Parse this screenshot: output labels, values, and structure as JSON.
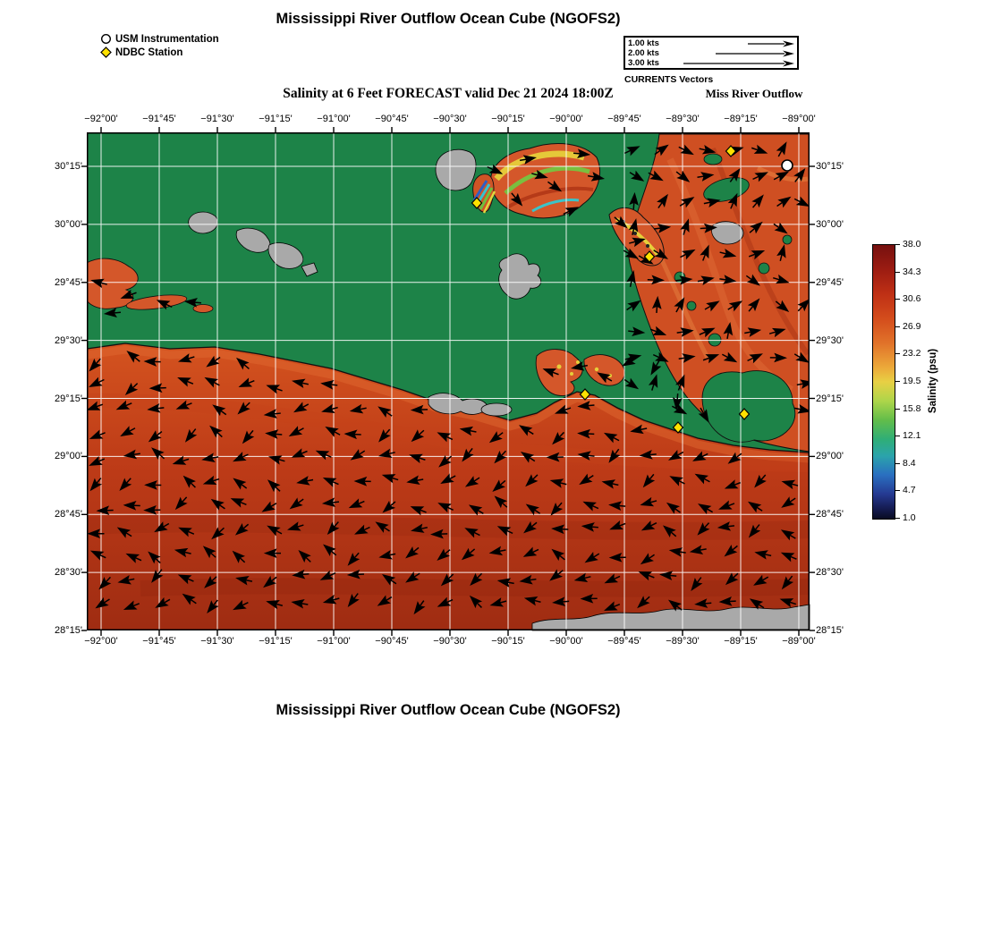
{
  "page": {
    "title_top": "Mississippi River Outflow Ocean Cube (NGOFS2)",
    "title_bottom": "Mississippi River Outflow Ocean Cube (NGOFS2)"
  },
  "marker_legend": {
    "usm": "USM Instrumentation",
    "ndbc": "NDBC Station"
  },
  "currents_legend": {
    "title": "CURRENTS Vectors",
    "items": [
      {
        "label": "1.00 kts"
      },
      {
        "label": "2.00 kts"
      },
      {
        "label": "3.00 kts"
      }
    ]
  },
  "map": {
    "region_label": "Miss River Outflow",
    "subtitle": "Salinity at 6 Feet FORECAST valid Dec 21 2024 18:00Z",
    "x_ticks": [
      "−92°00'",
      "−91°45'",
      "−91°30'",
      "−91°15'",
      "−91°00'",
      "−90°45'",
      "−90°30'",
      "−90°15'",
      "−90°00'",
      "−89°45'",
      "−89°30'",
      "−89°15'",
      "−89°00'"
    ],
    "y_ticks": [
      "30°15'",
      "30°00'",
      "29°45'",
      "29°30'",
      "29°15'",
      "29°00'",
      "28°45'",
      "28°30'",
      "28°15'"
    ]
  },
  "colorbar": {
    "label": "Salinity (psu)",
    "ticks": [
      "38.0",
      "34.3",
      "30.6",
      "26.9",
      "23.2",
      "19.5",
      "15.8",
      "12.1",
      "8.4",
      "4.7",
      "1.0"
    ]
  },
  "chart_data": {
    "type": "heatmap",
    "title": "Salinity at 6 Feet FORECAST valid Dec 21 2024 18:00Z",
    "model": "Mississippi River Outflow Ocean Cube (NGOFS2)",
    "region_label": "Miss River Outflow",
    "variable": "Salinity (psu)",
    "value_range": [
      1.0,
      38.0
    ],
    "colorbar_ticks": [
      38.0,
      34.3,
      30.6,
      26.9,
      23.2,
      19.5,
      15.8,
      12.1,
      8.4,
      4.7,
      1.0
    ],
    "lon_ticks_deg": [
      -92.0,
      -91.75,
      -91.5,
      -91.25,
      -91.0,
      -90.75,
      -90.5,
      -90.25,
      -90.0,
      -89.75,
      -89.5,
      -89.25,
      -89.0
    ],
    "lat_ticks_deg": [
      30.25,
      30.0,
      29.75,
      29.5,
      29.25,
      29.0,
      28.75,
      28.5,
      28.25
    ],
    "grid": "on",
    "overlay_vectors": {
      "name": "CURRENTS Vectors",
      "legend_speeds_kts": [
        1.0,
        2.0,
        3.0
      ]
    },
    "usm_station_lonlat_approx": [
      [
        -89.05,
        30.25
      ]
    ],
    "ndbc_stations_lonlat_approx": [
      [
        -89.29,
        30.32
      ],
      [
        -90.38,
        30.09
      ],
      [
        -89.64,
        29.86
      ],
      [
        -89.92,
        29.27
      ],
      [
        -89.52,
        29.12
      ],
      [
        -89.23,
        29.18
      ]
    ]
  }
}
